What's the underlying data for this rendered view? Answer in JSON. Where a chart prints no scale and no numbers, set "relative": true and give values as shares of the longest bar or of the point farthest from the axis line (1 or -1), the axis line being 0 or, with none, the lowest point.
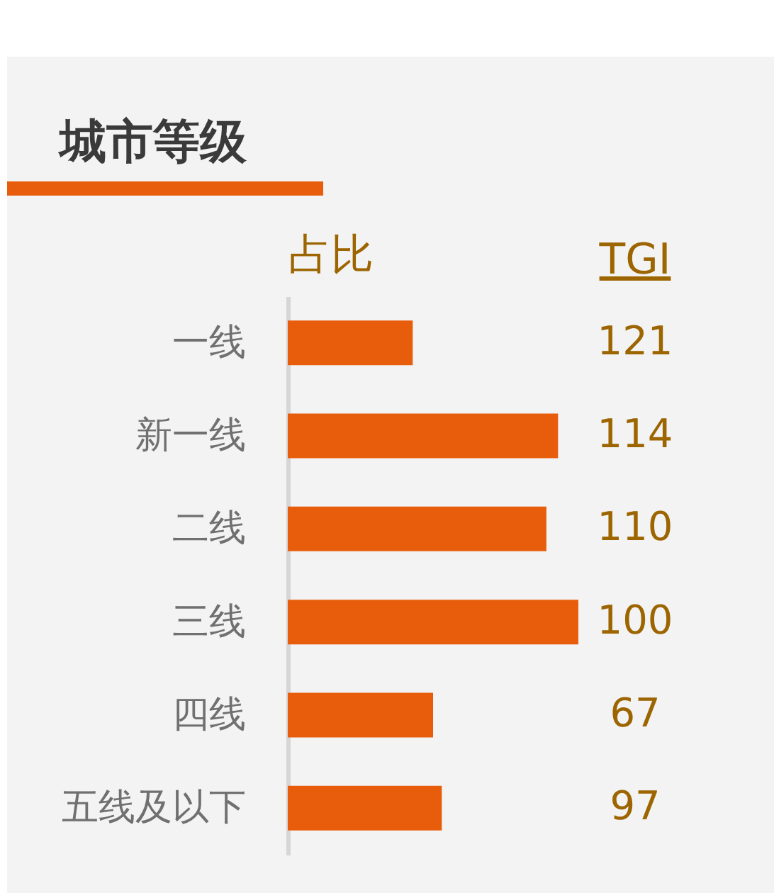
{
  "chart_data": {
    "type": "bar",
    "title": "城市等级",
    "xlabel": "占比",
    "orientation": "horizontal",
    "relative": true,
    "categories": [
      "一线",
      "新一线",
      "二线",
      "三线",
      "四线",
      "五线及以下"
    ],
    "values": [
      0.43,
      0.93,
      0.89,
      1,
      0.5,
      0.53
    ],
    "color": "#e85d0c",
    "annotations": [
      "TGI",
      "121",
      "114",
      "110",
      "100",
      "67",
      "97"
    ]
  }
}
